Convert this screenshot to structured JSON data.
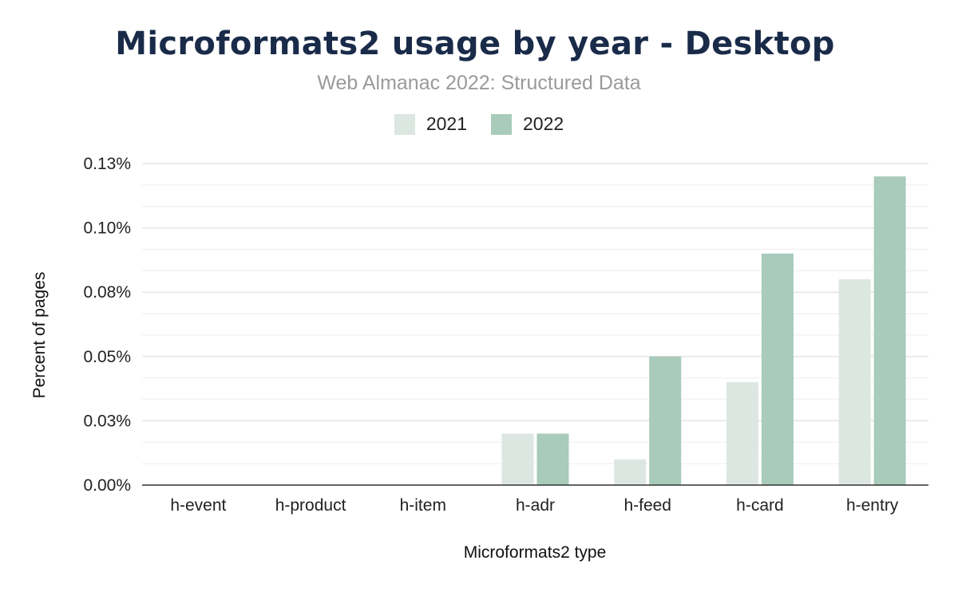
{
  "chart_data": {
    "type": "bar",
    "title": "Microformats2 usage by year - Desktop",
    "subtitle": "Web Almanac 2022: Structured Data",
    "xlabel": "Microformats2 type",
    "ylabel": "Percent of pages",
    "categories": [
      "h-event",
      "h-product",
      "h-item",
      "h-adr",
      "h-feed",
      "h-card",
      "h-entry"
    ],
    "series": [
      {
        "name": "2021",
        "color": "#dde7e2",
        "values": [
          0,
          0,
          0,
          0.02,
          0.01,
          0.04,
          0.08
        ]
      },
      {
        "name": "2022",
        "color": "#a8cbbb",
        "values": [
          0,
          0,
          0,
          0.02,
          0.05,
          0.09,
          0.12
        ]
      }
    ],
    "ylim": [
      0,
      0.125
    ],
    "yticks": [
      0,
      0.025,
      0.05,
      0.075,
      0.1,
      0.125
    ],
    "ytick_labels": [
      "0.00%",
      "0.03%",
      "0.05%",
      "0.08%",
      "0.10%",
      "0.13%"
    ],
    "grid": true,
    "legend_position": "top-center"
  }
}
